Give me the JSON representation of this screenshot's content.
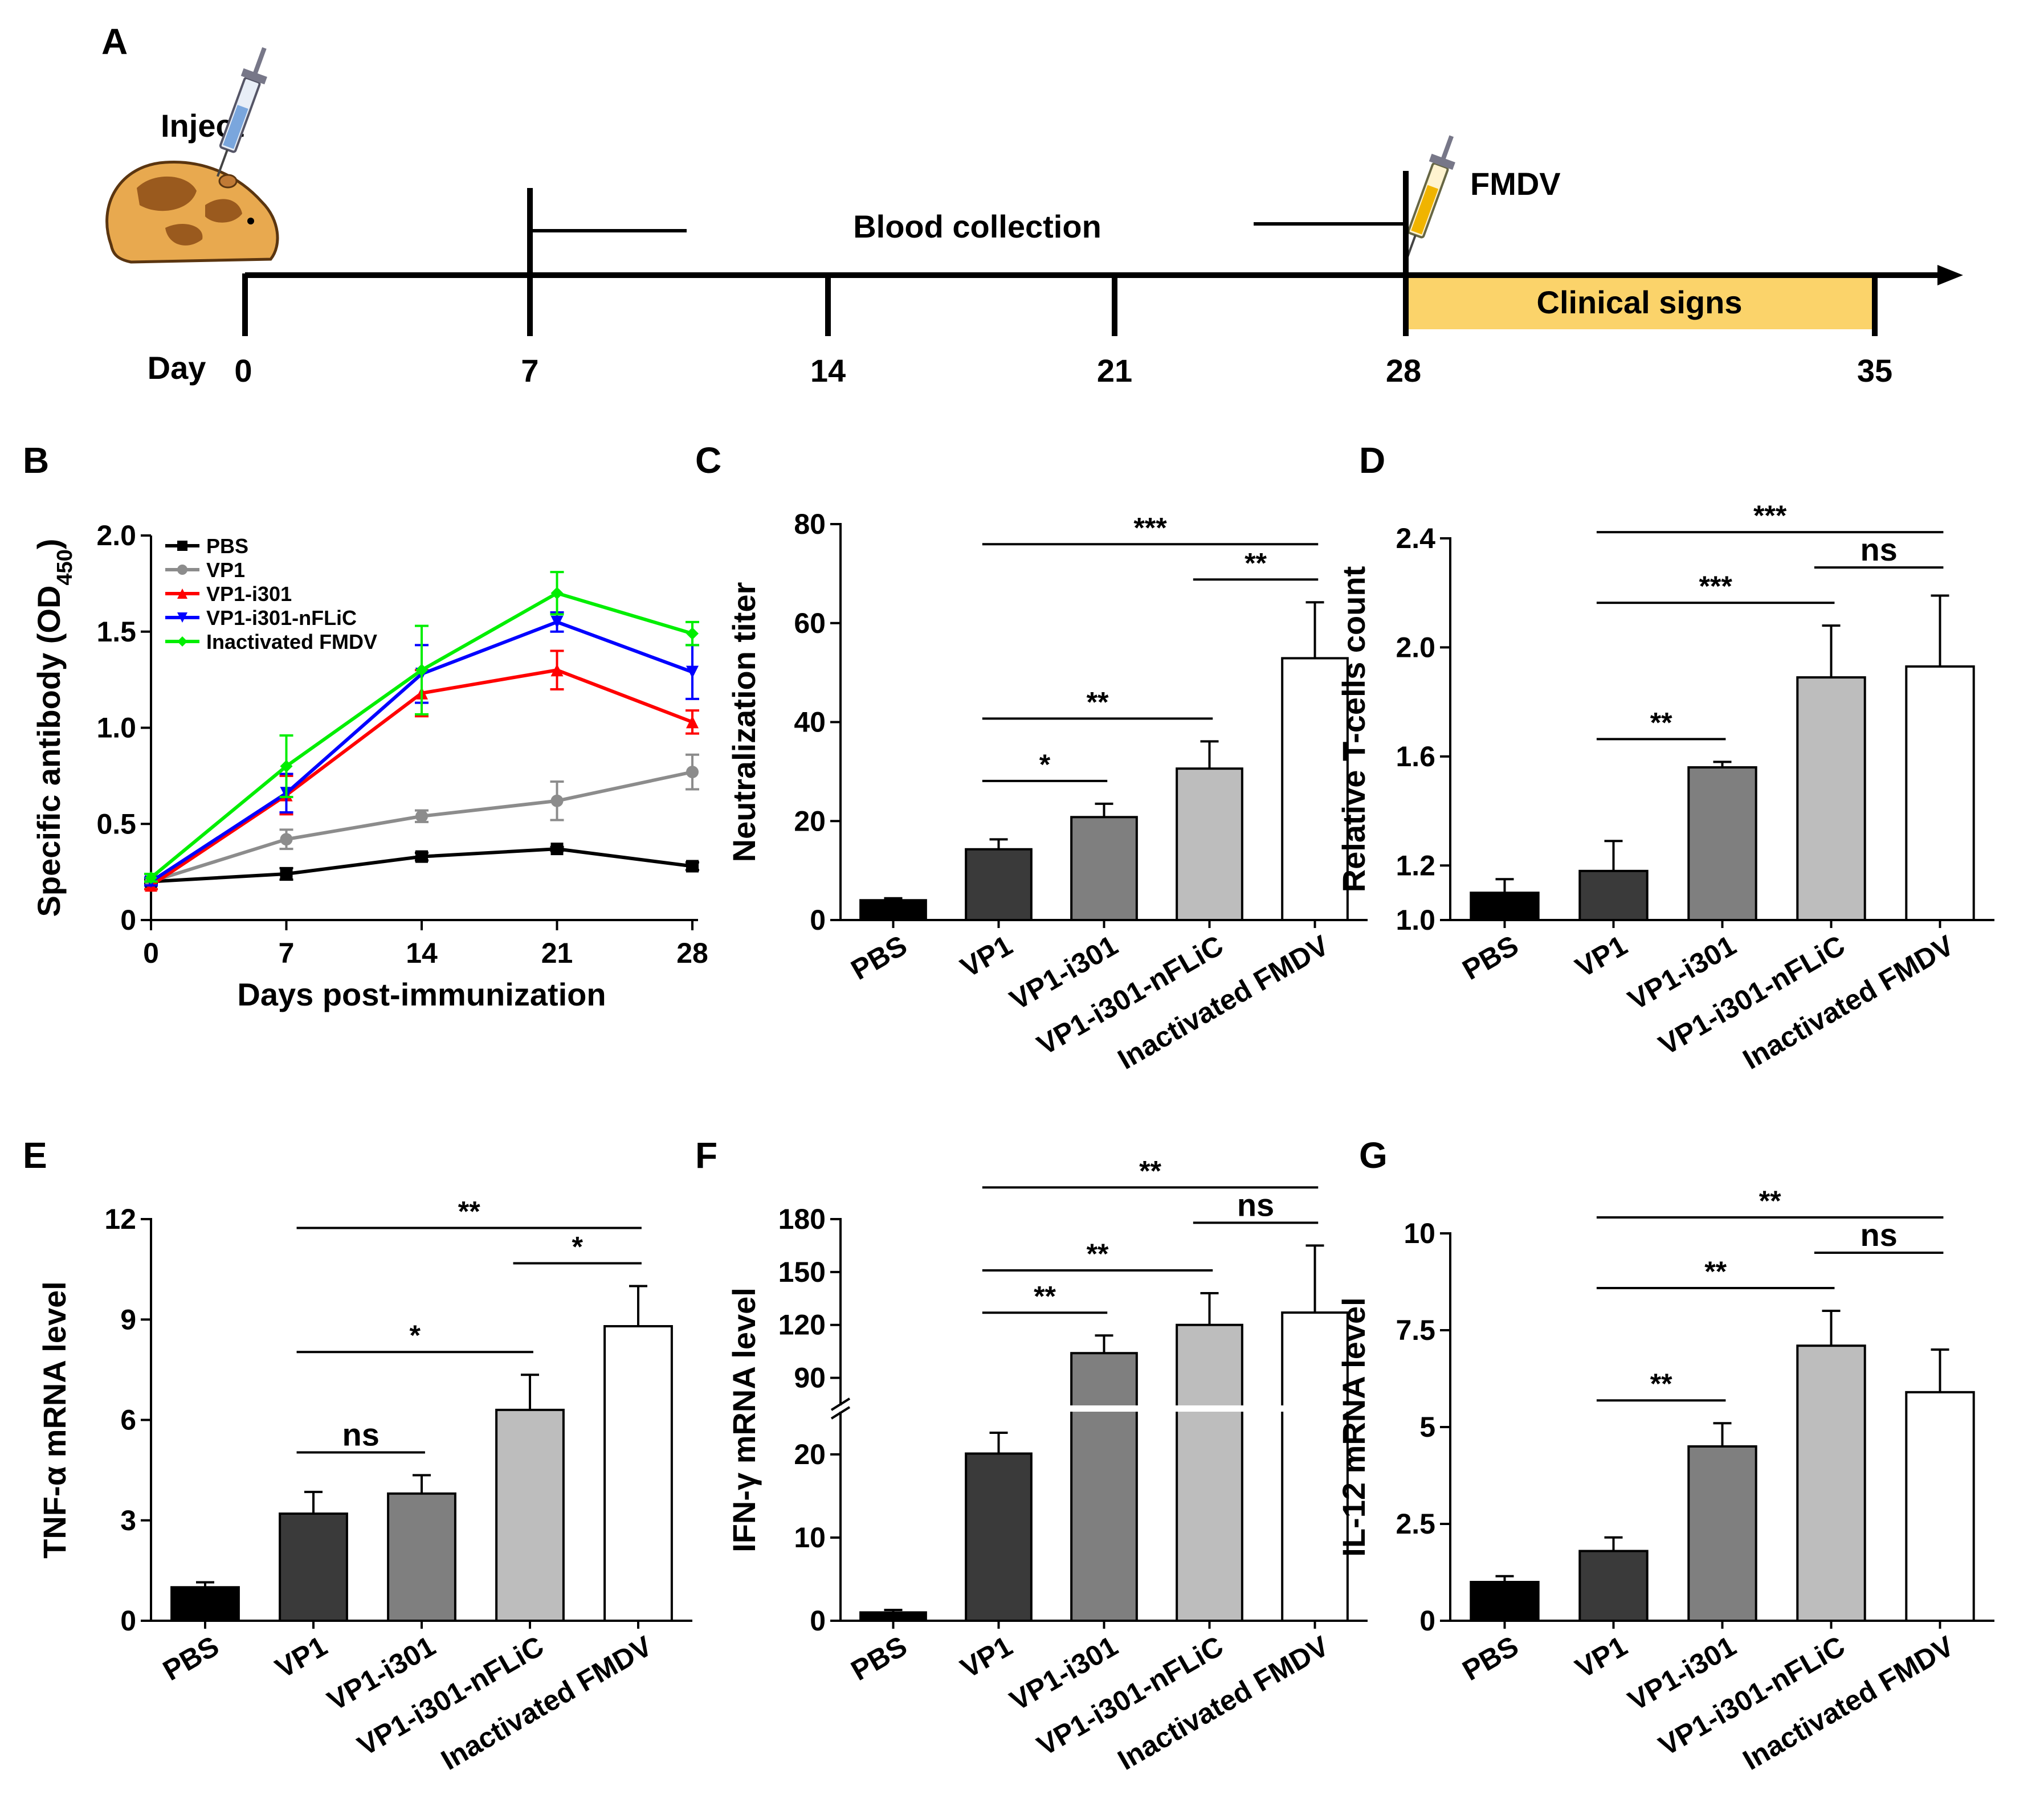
{
  "panel_a": {
    "label": "A",
    "inject_label": "Inject",
    "blood_label": "Blood collection",
    "fmdv_label": "FMDV",
    "clinical_label": "Clinical signs",
    "day_label": "Day",
    "days": [
      "0",
      "7",
      "14",
      "21",
      "28",
      "35"
    ],
    "clinical_color": "#FBD36A",
    "animal_color": "#E8A94F"
  },
  "group_colors": {
    "PBS": "#000000",
    "VP1": "#3a3a3a",
    "VP1-i301": "#7f7f7f",
    "VP1-i301-nFLiC": "#bdbdbd",
    "Inactivated FMDV": "#ffffff"
  },
  "chart_data": [
    {
      "panel": "B",
      "type": "line",
      "xlabel": "Days post-immunization",
      "ylabel": "Specific antibody (OD",
      "ylabel_sub": "450",
      "ylabel_close": ")",
      "x": [
        0,
        7,
        14,
        21,
        28
      ],
      "xticks": [
        "0",
        "7",
        "14",
        "21",
        "28"
      ],
      "ylim": [
        0,
        2.0
      ],
      "yticks": [
        "0",
        "0.5",
        "1.0",
        "1.5",
        "2.0"
      ],
      "legend_position": "top-left",
      "series": [
        {
          "name": "PBS",
          "color": "#000000",
          "marker": "square",
          "values": [
            0.2,
            0.24,
            0.33,
            0.37,
            0.28
          ],
          "errors": [
            0.01,
            0.03,
            0.02,
            0.01,
            0.02
          ]
        },
        {
          "name": "VP1",
          "color": "#8c8c8c",
          "marker": "circle",
          "values": [
            0.2,
            0.42,
            0.54,
            0.62,
            0.77
          ],
          "errors": [
            0.02,
            0.05,
            0.03,
            0.1,
            0.09
          ]
        },
        {
          "name": "VP1-i301",
          "color": "#ff0000",
          "marker": "triangle-up",
          "values": [
            0.18,
            0.65,
            1.18,
            1.3,
            1.03
          ],
          "errors": [
            0.02,
            0.1,
            0.12,
            0.1,
            0.06
          ]
        },
        {
          "name": "VP1-i301-nFLiC",
          "color": "#0000ff",
          "marker": "triangle-down",
          "values": [
            0.2,
            0.66,
            1.28,
            1.55,
            1.29
          ],
          "errors": [
            0.02,
            0.1,
            0.15,
            0.05,
            0.14
          ]
        },
        {
          "name": "Inactivated FMDV",
          "color": "#00ee00",
          "marker": "diamond",
          "values": [
            0.22,
            0.8,
            1.3,
            1.7,
            1.49
          ],
          "errors": [
            0.02,
            0.16,
            0.23,
            0.11,
            0.06
          ]
        }
      ]
    },
    {
      "panel": "C",
      "type": "bar",
      "ylabel": "Neutralization titer",
      "categories": [
        "PBS",
        "VP1",
        "VP1-i301",
        "VP1-i301-nFLiC",
        "Inactivated FMDV"
      ],
      "values": [
        4,
        14.3,
        20.8,
        30.6,
        52.9
      ],
      "errors": [
        0.4,
        2.0,
        2.7,
        5.5,
        11.3
      ],
      "ylim": [
        0,
        80
      ],
      "yticks": [
        "0",
        "20",
        "40",
        "60",
        "80"
      ],
      "significance": [
        {
          "from": 1,
          "to": 2,
          "label": "*"
        },
        {
          "from": 1,
          "to": 3,
          "label": "**"
        },
        {
          "from": 3,
          "to": 4,
          "label": "**"
        },
        {
          "from": 1,
          "to": 4,
          "label": "***"
        }
      ]
    },
    {
      "panel": "D",
      "type": "bar",
      "ylabel": "Relative T-cells count",
      "categories": [
        "PBS",
        "VP1",
        "VP1-i301",
        "VP1-i301-nFLiC",
        "Inactivated FMDV"
      ],
      "values": [
        1.1,
        1.18,
        1.56,
        1.89,
        1.93
      ],
      "errors": [
        0.05,
        0.11,
        0.02,
        0.19,
        0.26
      ],
      "ylim": [
        1.0,
        2.4
      ],
      "yticks": [
        "1.0",
        "1.2",
        "1.6",
        "2.0",
        "2.4"
      ],
      "significance": [
        {
          "from": 1,
          "to": 2,
          "label": "**"
        },
        {
          "from": 1,
          "to": 3,
          "label": "***"
        },
        {
          "from": 3,
          "to": 4,
          "label": "ns"
        },
        {
          "from": 1,
          "to": 4,
          "label": "***"
        }
      ]
    },
    {
      "panel": "E",
      "type": "bar",
      "ylabel": "TNF-α mRNA level",
      "categories": [
        "PBS",
        "VP1",
        "VP1-i301",
        "VP1-i301-nFLiC",
        "Inactivated FMDV"
      ],
      "values": [
        1.0,
        3.2,
        3.8,
        6.3,
        8.8
      ],
      "errors": [
        0.15,
        0.65,
        0.55,
        1.05,
        1.2
      ],
      "ylim": [
        0,
        12
      ],
      "yticks": [
        "0",
        "3",
        "6",
        "9",
        "12"
      ],
      "significance": [
        {
          "from": 1,
          "to": 2,
          "label": "ns"
        },
        {
          "from": 1,
          "to": 3,
          "label": "*"
        },
        {
          "from": 3,
          "to": 4,
          "label": "*"
        },
        {
          "from": 1,
          "to": 4,
          "label": "**"
        }
      ]
    },
    {
      "panel": "F",
      "type": "bar",
      "ylabel": "IFN-γ mRNA level",
      "broken_axis": true,
      "categories": [
        "PBS",
        "VP1",
        "VP1-i301",
        "VP1-i301-nFLiC",
        "Inactivated FMDV"
      ],
      "values": [
        1.0,
        20.1,
        104,
        120,
        127
      ],
      "errors": [
        0.3,
        2.5,
        10,
        18,
        38
      ],
      "ylim_lower": [
        0,
        25
      ],
      "ylim_upper": [
        75,
        180
      ],
      "yticks": [
        "0",
        "10",
        "20",
        "90",
        "120",
        "150",
        "180"
      ],
      "significance": [
        {
          "from": 1,
          "to": 2,
          "label": "**"
        },
        {
          "from": 1,
          "to": 3,
          "label": "**"
        },
        {
          "from": 3,
          "to": 4,
          "label": "ns"
        },
        {
          "from": 1,
          "to": 4,
          "label": "**"
        }
      ]
    },
    {
      "panel": "G",
      "type": "bar",
      "ylabel": "IL-12 mRNA level",
      "categories": [
        "PBS",
        "VP1",
        "VP1-i301",
        "VP1-i301-nFLiC",
        "Inactivated FMDV"
      ],
      "values": [
        1.0,
        1.8,
        4.5,
        7.1,
        5.9
      ],
      "errors": [
        0.15,
        0.35,
        0.6,
        0.9,
        1.1
      ],
      "ylim": [
        0,
        10
      ],
      "yticks": [
        "0",
        "2.5",
        "5",
        "7.5",
        "10"
      ],
      "significance": [
        {
          "from": 1,
          "to": 2,
          "label": "**"
        },
        {
          "from": 1,
          "to": 3,
          "label": "**"
        },
        {
          "from": 3,
          "to": 4,
          "label": "ns"
        },
        {
          "from": 1,
          "to": 4,
          "label": "**"
        }
      ]
    }
  ]
}
